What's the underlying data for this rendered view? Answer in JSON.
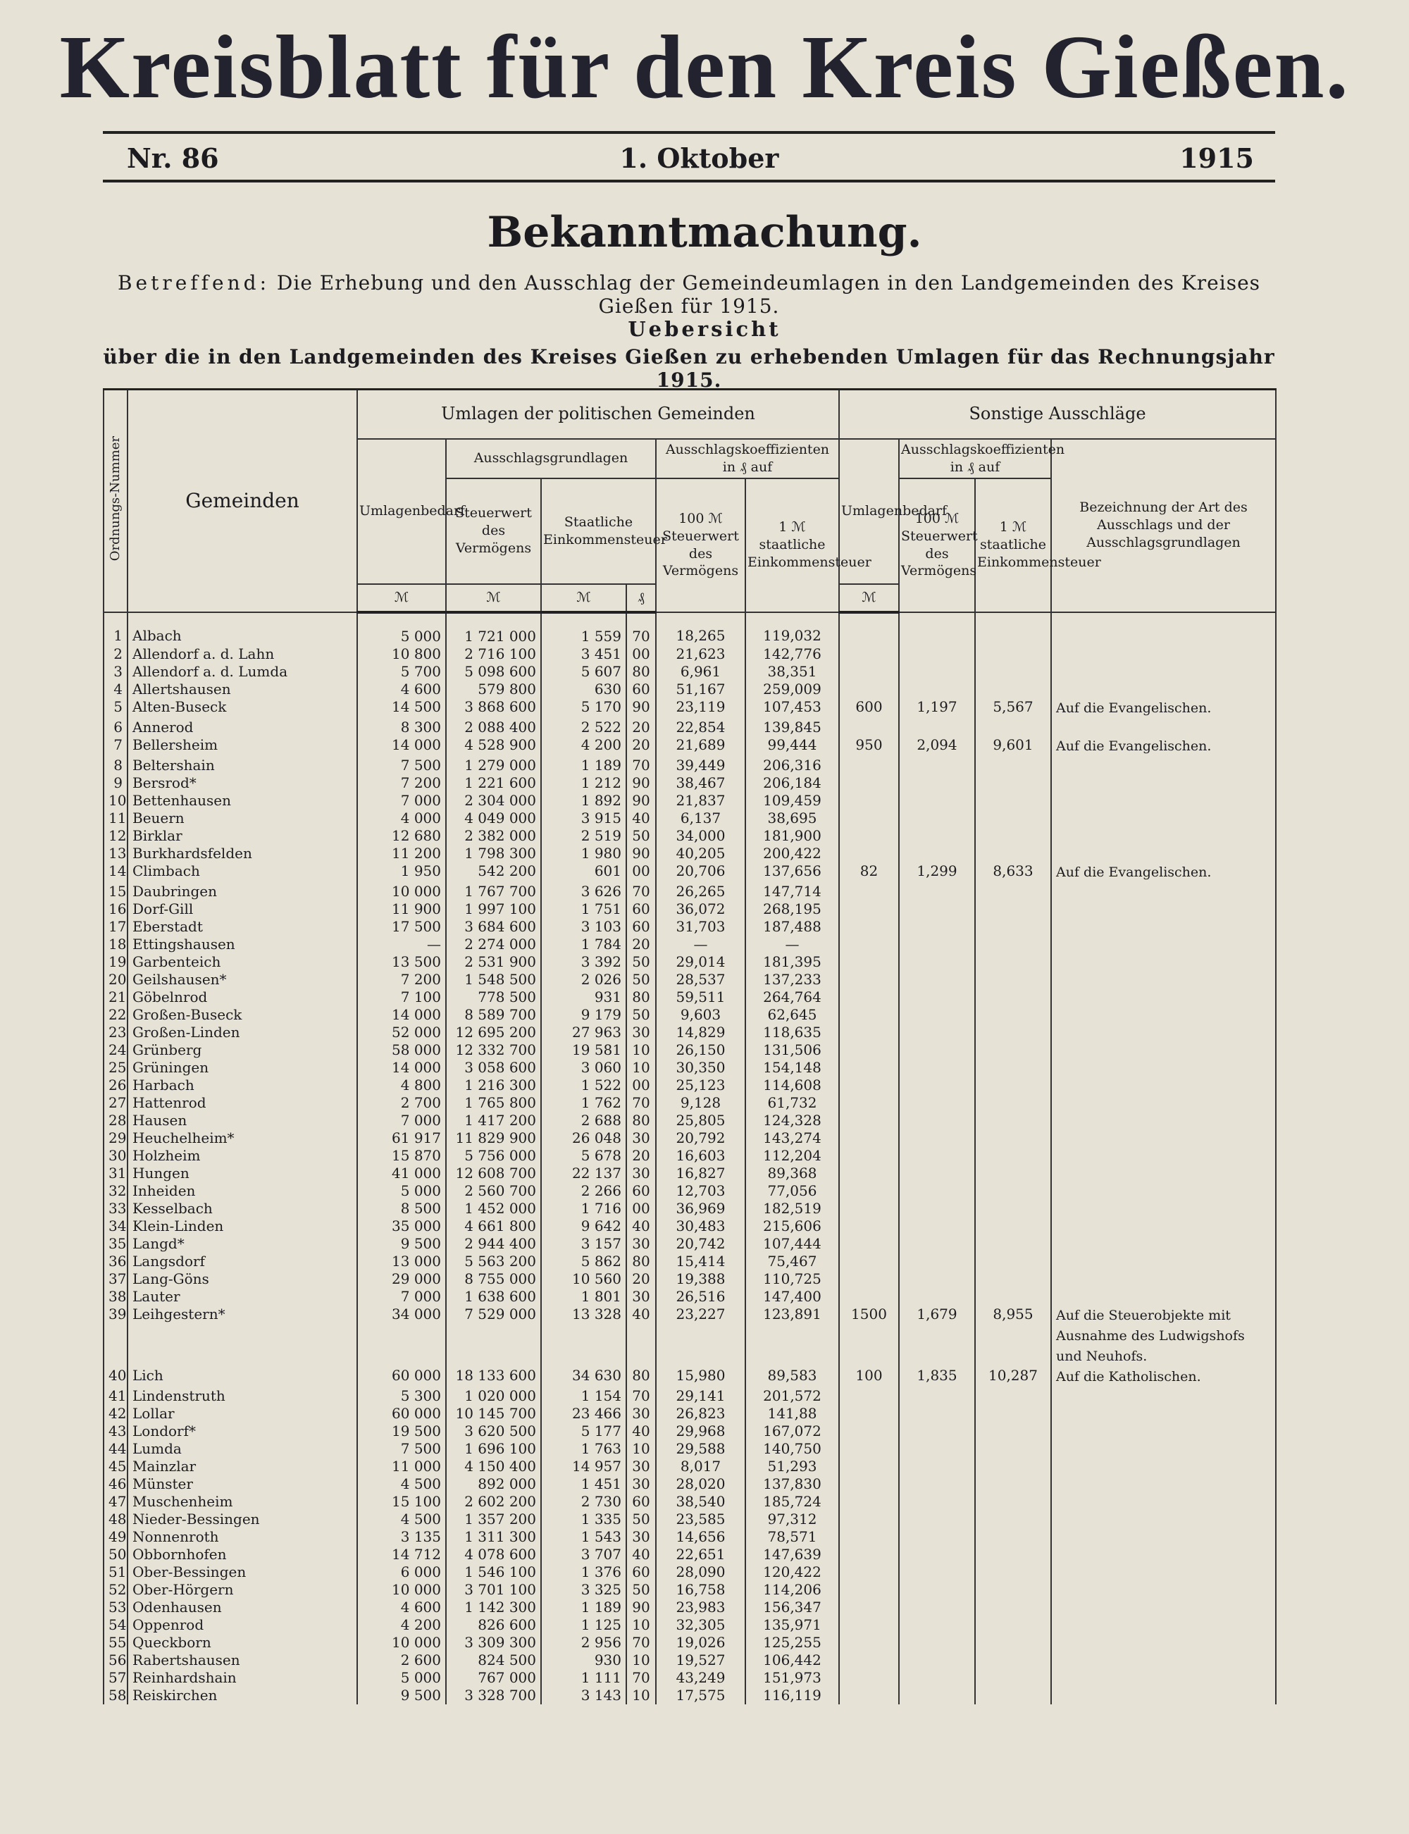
{
  "masthead": {
    "title": "Kreisblatt für den Kreis Gießen.",
    "number": "Nr. 86",
    "date": "1. Oktober",
    "year": "1915"
  },
  "notice": {
    "heading": "Bekanntmachung.",
    "subject_label": "Betreffend:",
    "subject": "Die Erhebung und den Ausschlag der Gemeindeumlagen in den Landgemeinden des Kreises Gießen für 1915.",
    "overview_title": "Uebersicht",
    "overview_subtitle": "über die in den Landgemeinden des Kreises Gießen zu erhebenden Umlagen für das Rechnungsjahr 1915."
  },
  "table": {
    "headers": {
      "number": "Ordnungs-Nummer",
      "municipalities": "Gemeinden",
      "political": "Umlagen der politischen Gemeinden",
      "other": "Sonstige Ausschläge",
      "requirement": "Umlagenbedarf",
      "bases": "Ausschlagsgrundlagen",
      "coefficients": "Ausschlagskoeffizienten in ₰ auf",
      "tax_value": "Steuerwert des Vermögens",
      "income_tax": "Staatliche Einkommensteuer",
      "per_100": "100 ℳ Steuerwert des Vermögens",
      "per_1": "1 ℳ staatliche Einkommensteuer",
      "other_requirement": "Umlagenbedarf",
      "other_coefficients": "Ausschlagskoeffizienten in ₰ auf",
      "other_per_100": "100 ℳ Steuerwert des Vermögens",
      "other_per_1": "1 ℳ staatliche Einkommensteuer",
      "description": "Bezeichnung der Art des Ausschlags und der Ausschlagsgrundlagen",
      "unit_requirement": "ℳ",
      "unit_tax_value": "ℳ",
      "unit_income_m": "ℳ",
      "unit_income_pf": "₰",
      "unit_other_requirement": "ℳ"
    },
    "rows": [
      [
        "1",
        "Albach",
        "5 000",
        "1 721 000",
        "1 559",
        "70",
        "18,265",
        "119,032"
      ],
      [
        "2",
        "Allendorf a. d. Lahn",
        "10 800",
        "2 716 100",
        "3 451",
        "00",
        "21,623",
        "142,776"
      ],
      [
        "3",
        "Allendorf a. d. Lumda",
        "5 700",
        "5 098 600",
        "5 607",
        "80",
        "6,961",
        "38,351"
      ],
      [
        "4",
        "Allertshausen",
        "4 600",
        "579 800",
        "630",
        "60",
        "51,167",
        "259,009"
      ],
      [
        "5",
        "Alten-Buseck",
        "14 500",
        "3 868 600",
        "5 170",
        "90",
        "23,119",
        "107,453",
        [
          "600",
          "1,197",
          "5,567",
          "Auf die Evangelischen."
        ]
      ],
      [
        "6",
        "Annerod",
        "8 300",
        "2 088 400",
        "2 522",
        "20",
        "22,854",
        "139,845"
      ],
      [
        "7",
        "Bellersheim",
        "14 000",
        "4 528 900",
        "4 200",
        "20",
        "21,689",
        "99,444",
        [
          "950",
          "2,094",
          "9,601",
          "Auf die Evangelischen."
        ]
      ],
      [
        "8",
        "Beltershain",
        "7 500",
        "1 279 000",
        "1 189",
        "70",
        "39,449",
        "206,316"
      ],
      [
        "9",
        "Bersrod*",
        "7 200",
        "1 221 600",
        "1 212",
        "90",
        "38,467",
        "206,184"
      ],
      [
        "10",
        "Bettenhausen",
        "7 000",
        "2 304 000",
        "1 892",
        "90",
        "21,837",
        "109,459"
      ],
      [
        "11",
        "Beuern",
        "4 000",
        "4 049 000",
        "3 915",
        "40",
        "6,137",
        "38,695"
      ],
      [
        "12",
        "Birklar",
        "12 680",
        "2 382 000",
        "2 519",
        "50",
        "34,000",
        "181,900"
      ],
      [
        "13",
        "Burkhardsfelden",
        "11 200",
        "1 798 300",
        "1 980",
        "90",
        "40,205",
        "200,422"
      ],
      [
        "14",
        "Climbach",
        "1 950",
        "542 200",
        "601",
        "00",
        "20,706",
        "137,656",
        [
          "82",
          "1,299",
          "8,633",
          "Auf die Evangelischen."
        ]
      ],
      [
        "15",
        "Daubringen",
        "10 000",
        "1 767 700",
        "3 626",
        "70",
        "26,265",
        "147,714"
      ],
      [
        "16",
        "Dorf-Gill",
        "11 900",
        "1 997 100",
        "1 751",
        "60",
        "36,072",
        "268,195"
      ],
      [
        "17",
        "Eberstadt",
        "17 500",
        "3 684 600",
        "3 103",
        "60",
        "31,703",
        "187,488"
      ],
      [
        "18",
        "Ettingshausen",
        "—",
        "2 274 000",
        "1 784",
        "20",
        "—",
        "—"
      ],
      [
        "19",
        "Garbenteich",
        "13 500",
        "2 531 900",
        "3 392",
        "50",
        "29,014",
        "181,395"
      ],
      [
        "20",
        "Geilshausen*",
        "7 200",
        "1 548 500",
        "2 026",
        "50",
        "28,537",
        "137,233"
      ],
      [
        "21",
        "Göbelnrod",
        "7 100",
        "778 500",
        "931",
        "80",
        "59,511",
        "264,764"
      ],
      [
        "22",
        "Großen-Buseck",
        "14 000",
        "8 589 700",
        "9 179",
        "50",
        "9,603",
        "62,645"
      ],
      [
        "23",
        "Großen-Linden",
        "52 000",
        "12 695 200",
        "27 963",
        "30",
        "14,829",
        "118,635"
      ],
      [
        "24",
        "Grünberg",
        "58 000",
        "12 332 700",
        "19 581",
        "10",
        "26,150",
        "131,506"
      ],
      [
        "25",
        "Grüningen",
        "14 000",
        "3 058 600",
        "3 060",
        "10",
        "30,350",
        "154,148"
      ],
      [
        "26",
        "Harbach",
        "4 800",
        "1 216 300",
        "1 522",
        "00",
        "25,123",
        "114,608"
      ],
      [
        "27",
        "Hattenrod",
        "2 700",
        "1 765 800",
        "1 762",
        "70",
        "9,128",
        "61,732"
      ],
      [
        "28",
        "Hausen",
        "7 000",
        "1 417 200",
        "2 688",
        "80",
        "25,805",
        "124,328"
      ],
      [
        "29",
        "Heuchelheim*",
        "61 917",
        "11 829 900",
        "26 048",
        "30",
        "20,792",
        "143,274"
      ],
      [
        "30",
        "Holzheim",
        "15 870",
        "5 756 000",
        "5 678",
        "20",
        "16,603",
        "112,204"
      ],
      [
        "31",
        "Hungen",
        "41 000",
        "12 608 700",
        "22 137",
        "30",
        "16,827",
        "89,368"
      ],
      [
        "32",
        "Inheiden",
        "5 000",
        "2 560 700",
        "2 266",
        "60",
        "12,703",
        "77,056"
      ],
      [
        "33",
        "Kesselbach",
        "8 500",
        "1 452 000",
        "1 716",
        "00",
        "36,969",
        "182,519"
      ],
      [
        "34",
        "Klein-Linden",
        "35 000",
        "4 661 800",
        "9 642",
        "40",
        "30,483",
        "215,606"
      ],
      [
        "35",
        "Langd*",
        "9 500",
        "2 944 400",
        "3 157",
        "30",
        "20,742",
        "107,444"
      ],
      [
        "36",
        "Langsdorf",
        "13 000",
        "5 563 200",
        "5 862",
        "80",
        "15,414",
        "75,467"
      ],
      [
        "37",
        "Lang-Göns",
        "29 000",
        "8 755 000",
        "10 560",
        "20",
        "19,388",
        "110,725"
      ],
      [
        "38",
        "Lauter",
        "7 000",
        "1 638 600",
        "1 801",
        "30",
        "26,516",
        "147,400"
      ],
      [
        "39",
        "Leihgestern*",
        "34 000",
        "7 529 000",
        "13 328",
        "40",
        "23,227",
        "123,891",
        [
          "1500",
          "1,679",
          "8,955",
          "Auf die Steuerobjekte mit Ausnahme des Ludwigshofs und Neuhofs."
        ]
      ],
      [
        "40",
        "Lich",
        "60 000",
        "18 133 600",
        "34 630",
        "80",
        "15,980",
        "89,583",
        [
          "100",
          "1,835",
          "10,287",
          "Auf die Katholischen."
        ]
      ],
      [
        "41",
        "Lindenstruth",
        "5 300",
        "1 020 000",
        "1 154",
        "70",
        "29,141",
        "201,572"
      ],
      [
        "42",
        "Lollar",
        "60 000",
        "10 145 700",
        "23 466",
        "30",
        "26,823",
        "141,88"
      ],
      [
        "43",
        "Londorf*",
        "19 500",
        "3 620 500",
        "5 177",
        "40",
        "29,968",
        "167,072"
      ],
      [
        "44",
        "Lumda",
        "7 500",
        "1 696 100",
        "1 763",
        "10",
        "29,588",
        "140,750"
      ],
      [
        "45",
        "Mainzlar",
        "11 000",
        "4 150 400",
        "14 957",
        "30",
        "8,017",
        "51,293"
      ],
      [
        "46",
        "Münster",
        "4 500",
        "892 000",
        "1 451",
        "30",
        "28,020",
        "137,830"
      ],
      [
        "47",
        "Muschenheim",
        "15 100",
        "2 602 200",
        "2 730",
        "60",
        "38,540",
        "185,724"
      ],
      [
        "48",
        "Nieder-Bessingen",
        "4 500",
        "1 357 200",
        "1 335",
        "50",
        "23,585",
        "97,312"
      ],
      [
        "49",
        "Nonnenroth",
        "3 135",
        "1 311 300",
        "1 543",
        "30",
        "14,656",
        "78,571"
      ],
      [
        "50",
        "Obbornhofen",
        "14 712",
        "4 078 600",
        "3 707",
        "40",
        "22,651",
        "147,639"
      ],
      [
        "51",
        "Ober-Bessingen",
        "6 000",
        "1 546 100",
        "1 376",
        "60",
        "28,090",
        "120,422"
      ],
      [
        "52",
        "Ober-Hörgern",
        "10 000",
        "3 701 100",
        "3 325",
        "50",
        "16,758",
        "114,206"
      ],
      [
        "53",
        "Odenhausen",
        "4 600",
        "1 142 300",
        "1 189",
        "90",
        "23,983",
        "156,347"
      ],
      [
        "54",
        "Oppenrod",
        "4 200",
        "826 600",
        "1 125",
        "10",
        "32,305",
        "135,971"
      ],
      [
        "55",
        "Queckborn",
        "10 000",
        "3 309 300",
        "2 956",
        "70",
        "19,026",
        "125,255"
      ],
      [
        "56",
        "Rabertshausen",
        "2 600",
        "824 500",
        "930",
        "10",
        "19,527",
        "106,442"
      ],
      [
        "57",
        "Reinhardshain",
        "5 000",
        "767 000",
        "1 111",
        "70",
        "43,249",
        "151,973"
      ],
      [
        "58",
        "Reiskirchen",
        "9 500",
        "3 328 700",
        "3 143",
        "10",
        "17,575",
        "116,119"
      ]
    ]
  }
}
